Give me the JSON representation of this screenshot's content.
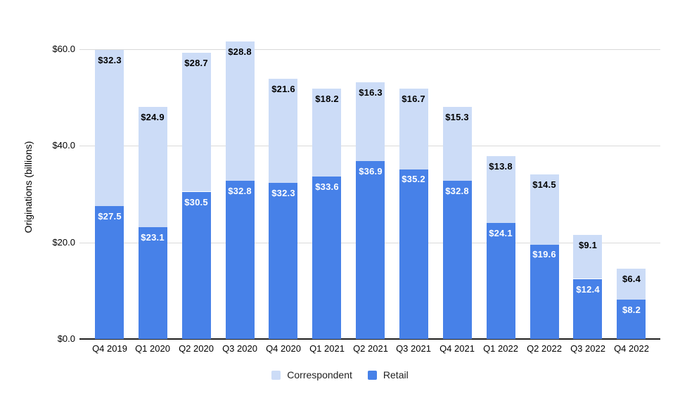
{
  "chart_data": {
    "type": "bar",
    "stacked": true,
    "title": "",
    "xlabel": "",
    "ylabel": "Originations (billions)",
    "value_prefix": "$",
    "categories": [
      "Q4 2019",
      "Q1 2020",
      "Q2 2020",
      "Q3 2020",
      "Q4 2020",
      "Q1 2021",
      "Q2 2021",
      "Q3 2021",
      "Q4 2021",
      "Q1 2022",
      "Q2 2022",
      "Q3 2022",
      "Q4 2022"
    ],
    "series": [
      {
        "name": "Retail",
        "color": "#4781e8",
        "label_color": "#ffffff",
        "values": [
          27.5,
          23.1,
          30.5,
          32.8,
          32.3,
          33.6,
          36.9,
          35.2,
          32.8,
          24.1,
          19.6,
          12.4,
          8.2
        ]
      },
      {
        "name": "Correspondent",
        "color": "#ccdcf7",
        "label_color": "#000000",
        "values": [
          32.3,
          24.9,
          28.7,
          28.8,
          21.6,
          18.2,
          16.3,
          16.7,
          15.3,
          13.8,
          14.5,
          9.1,
          6.4
        ]
      }
    ],
    "yticks": [
      {
        "value": 0,
        "label": "$0.0"
      },
      {
        "value": 20,
        "label": "$20.0"
      },
      {
        "value": 40,
        "label": "$40.0"
      },
      {
        "value": 60,
        "label": "$60.0"
      }
    ],
    "ylim": [
      0,
      64
    ],
    "grid": true,
    "grid_color": "#d9d9d9",
    "axis_color": "#1f1f1f",
    "legend": {
      "position": "bottom",
      "items": [
        {
          "label": "Correspondent",
          "color": "#ccdcf7"
        },
        {
          "label": "Retail",
          "color": "#4781e8"
        }
      ]
    }
  }
}
